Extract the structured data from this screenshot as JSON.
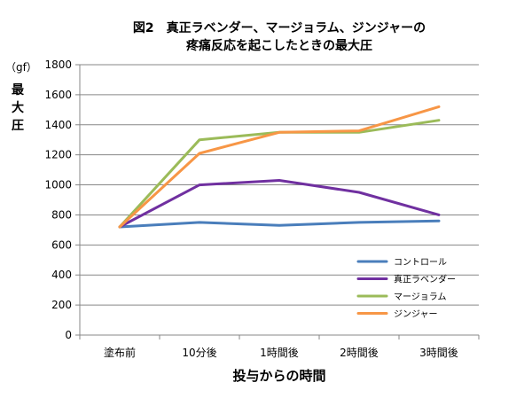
{
  "chart_data": {
    "type": "line",
    "title_lines": [
      "図2　真正ラベンダー、マージョラム、ジンジャーの",
      "疼痛反応を起こしたときの最大圧"
    ],
    "ylabel": "最大圧",
    "yunit": "（gf）",
    "xlabel": "投与からの時間",
    "categories": [
      "塗布前",
      "10分後",
      "1時間後",
      "2時間後",
      "3時間後"
    ],
    "ylim": [
      0,
      1800
    ],
    "yticks": [
      0,
      200,
      400,
      600,
      800,
      1000,
      1200,
      1400,
      1600,
      1800
    ],
    "grid": true,
    "legend_position": "right",
    "series": [
      {
        "name": "コントロール",
        "color": "#4a7ebb",
        "values": [
          720,
          750,
          730,
          750,
          760
        ]
      },
      {
        "name": "真正ラベンダー",
        "color": "#7030a0",
        "values": [
          720,
          1000,
          1030,
          950,
          800
        ]
      },
      {
        "name": "マージョラム",
        "color": "#9bbb59",
        "values": [
          720,
          1300,
          1350,
          1350,
          1430
        ]
      },
      {
        "name": "ジンジャー",
        "color": "#f79646",
        "values": [
          720,
          1210,
          1350,
          1360,
          1520
        ]
      }
    ]
  }
}
